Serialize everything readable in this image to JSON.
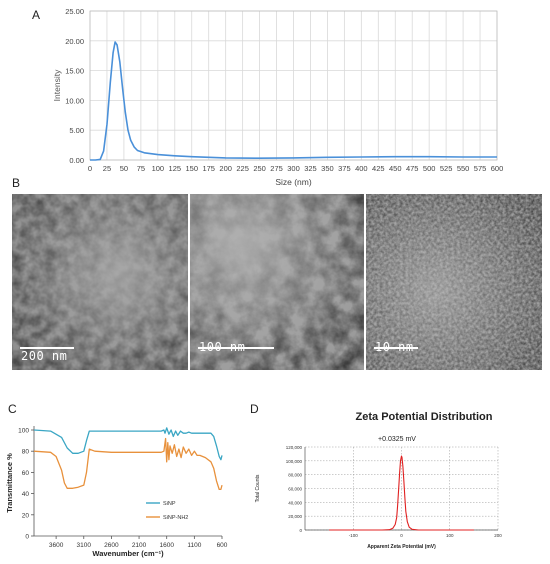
{
  "panels": {
    "a": "A",
    "b": "B",
    "c": "C",
    "d": "D"
  },
  "chart_data": [
    {
      "id": "A",
      "type": "line",
      "xlabel": "Size (nm)",
      "ylabel": "Intensity",
      "xlim": [
        0,
        600
      ],
      "ylim": [
        0,
        25
      ],
      "x_ticks": [
        0,
        25,
        50,
        75,
        100,
        125,
        150,
        175,
        200,
        225,
        250,
        275,
        300,
        325,
        350,
        375,
        400,
        425,
        450,
        475,
        500,
        525,
        550,
        575,
        600
      ],
      "y_ticks": [
        "0.00",
        "5.00",
        "10.00",
        "15.00",
        "20.00",
        "25.00"
      ],
      "y_tick_values": [
        0,
        5,
        10,
        15,
        20,
        25
      ],
      "grid": true,
      "color": "#4a90d9",
      "series": [
        {
          "x": [
            0,
            8,
            15,
            20,
            25,
            30,
            34,
            37,
            40,
            44,
            48,
            52,
            56,
            60,
            65,
            70,
            80,
            100,
            125,
            150,
            175,
            200,
            250,
            300,
            350,
            400,
            450,
            500,
            550,
            600
          ],
          "y": [
            0,
            0,
            0.1,
            1.5,
            6,
            13,
            18,
            19.8,
            19.3,
            16.5,
            12,
            8,
            5,
            3.3,
            2.2,
            1.6,
            1.2,
            0.9,
            0.7,
            0.55,
            0.45,
            0.35,
            0.3,
            0.35,
            0.45,
            0.5,
            0.55,
            0.55,
            0.5,
            0.5
          ]
        }
      ]
    },
    {
      "id": "C",
      "type": "line",
      "xlabel": "Wavenumber (cm⁻¹)",
      "ylabel": "Transmittance %",
      "xlim": [
        4000,
        600
      ],
      "ylim": [
        0,
        100
      ],
      "x_ticks": [
        3600,
        3100,
        2600,
        2100,
        1600,
        1100,
        600
      ],
      "y_ticks": [
        0,
        20,
        40,
        60,
        80,
        100
      ],
      "series": [
        {
          "name": "SiNP",
          "color": "#3aa6c4",
          "x": [
            4000,
            3700,
            3500,
            3400,
            3300,
            3200,
            3100,
            3050,
            3000,
            2900,
            2600,
            2100,
            1700,
            1650,
            1630,
            1600,
            1560,
            1520,
            1480,
            1440,
            1400,
            1350,
            1300,
            1250,
            1200,
            1150,
            1100,
            1050,
            1000,
            900,
            800,
            750,
            700,
            650,
            620,
            600
          ],
          "y": [
            100,
            99,
            93,
            83,
            78,
            78,
            80,
            90,
            99,
            99,
            99,
            99,
            99,
            100,
            97,
            102,
            96,
            100,
            94,
            99,
            95,
            99,
            97,
            97,
            98,
            97,
            97,
            97,
            97,
            97,
            97,
            94,
            85,
            75,
            72,
            76
          ]
        },
        {
          "name": "SiNP-NH2",
          "color": "#e8913c",
          "x": [
            4000,
            3700,
            3600,
            3500,
            3450,
            3400,
            3300,
            3200,
            3100,
            3050,
            3000,
            2900,
            2600,
            2100,
            1700,
            1650,
            1620,
            1600,
            1580,
            1560,
            1540,
            1500,
            1460,
            1420,
            1380,
            1340,
            1300,
            1250,
            1200,
            1150,
            1100,
            1050,
            1000,
            900,
            800,
            750,
            700,
            650,
            620,
            600
          ],
          "y": [
            80,
            79,
            75,
            62,
            50,
            45,
            45,
            46,
            48,
            60,
            82,
            80,
            79,
            79,
            79,
            80,
            92,
            70,
            88,
            72,
            85,
            78,
            86,
            75,
            82,
            74,
            84,
            78,
            82,
            76,
            80,
            76,
            76,
            74,
            70,
            64,
            52,
            44,
            44,
            48
          ]
        }
      ]
    },
    {
      "id": "D",
      "type": "line",
      "title": "Zeta Potential Distribution",
      "annotation": "+0.0325 mV",
      "xlabel": "Apparent Zeta Potential (mV)",
      "ylabel": "Total Counts",
      "xlim": [
        -200,
        200
      ],
      "ylim": [
        0,
        120000
      ],
      "x_ticks": [
        -100,
        0,
        100,
        200
      ],
      "x_tick_labels": [
        "-100",
        "0",
        "100",
        "200"
      ],
      "y_ticks": [
        0,
        20000,
        40000,
        60000,
        80000,
        100000,
        120000
      ],
      "y_tick_labels": [
        "0",
        "20,000",
        "40,000",
        "60,000",
        "80,000",
        "100,000",
        "120,000"
      ],
      "grid": true,
      "series": [
        {
          "color": "#e02020",
          "x": [
            -150,
            -40,
            -25,
            -18,
            -13,
            -10,
            -8,
            -6,
            -4,
            -2,
            0,
            1,
            3,
            5,
            7,
            9,
            12,
            16,
            22,
            35,
            150
          ],
          "y": [
            0,
            0,
            500,
            2500,
            8000,
            18000,
            35000,
            58000,
            82000,
            100000,
            107000,
            105000,
            92000,
            70000,
            46000,
            27000,
            12000,
            4000,
            1000,
            0,
            0
          ]
        }
      ]
    }
  ],
  "tem": [
    {
      "scale": "200 nm"
    },
    {
      "scale": "100 nm"
    },
    {
      "scale": "10 nm"
    }
  ]
}
